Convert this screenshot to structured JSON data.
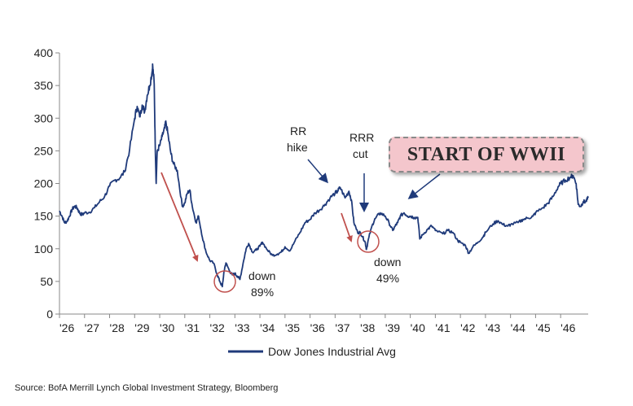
{
  "chart_data": {
    "type": "line",
    "title": "",
    "xlabel": "",
    "ylabel": "",
    "ylim": [
      0,
      400
    ],
    "xlim": [
      1926.0,
      1947.1
    ],
    "yticks": [
      0,
      50,
      100,
      150,
      200,
      250,
      300,
      350,
      400
    ],
    "xtick_labels": [
      "'26",
      "'27",
      "'28",
      "'29",
      "'30",
      "'31",
      "'32",
      "'33",
      "'34",
      "'35",
      "'36",
      "'37",
      "'38",
      "'39",
      "'40",
      "'41",
      "'42",
      "'43",
      "'44",
      "'45",
      "'46"
    ],
    "grid": false,
    "legend": {
      "position": "bottom",
      "entries": [
        "Dow Jones Industrial Avg"
      ]
    },
    "line_color": "#1f3a7a",
    "series": [
      {
        "name": "Dow Jones Industrial Avg",
        "points": [
          [
            1926.0,
            158
          ],
          [
            1926.1,
            150
          ],
          [
            1926.2,
            140
          ],
          [
            1926.3,
            142
          ],
          [
            1926.4,
            150
          ],
          [
            1926.5,
            160
          ],
          [
            1926.6,
            165
          ],
          [
            1926.7,
            163
          ],
          [
            1926.8,
            155
          ],
          [
            1926.9,
            152
          ],
          [
            1927.0,
            155
          ],
          [
            1927.2,
            156
          ],
          [
            1927.4,
            163
          ],
          [
            1927.6,
            172
          ],
          [
            1927.8,
            180
          ],
          [
            1928.0,
            196
          ],
          [
            1928.2,
            205
          ],
          [
            1928.4,
            208
          ],
          [
            1928.6,
            218
          ],
          [
            1928.8,
            252
          ],
          [
            1929.0,
            300
          ],
          [
            1929.1,
            318
          ],
          [
            1929.2,
            302
          ],
          [
            1929.3,
            320
          ],
          [
            1929.4,
            310
          ],
          [
            1929.5,
            335
          ],
          [
            1929.6,
            350
          ],
          [
            1929.7,
            372
          ],
          [
            1929.72,
            381
          ],
          [
            1929.78,
            352
          ],
          [
            1929.82,
            262
          ],
          [
            1929.86,
            200
          ],
          [
            1929.9,
            250
          ],
          [
            1930.0,
            258
          ],
          [
            1930.1,
            272
          ],
          [
            1930.2,
            285
          ],
          [
            1930.25,
            294
          ],
          [
            1930.35,
            270
          ],
          [
            1930.45,
            245
          ],
          [
            1930.55,
            230
          ],
          [
            1930.7,
            220
          ],
          [
            1930.9,
            165
          ],
          [
            1931.0,
            170
          ],
          [
            1931.1,
            185
          ],
          [
            1931.2,
            190
          ],
          [
            1931.3,
            165
          ],
          [
            1931.45,
            140
          ],
          [
            1931.55,
            150
          ],
          [
            1931.7,
            118
          ],
          [
            1931.85,
            95
          ],
          [
            1932.0,
            82
          ],
          [
            1932.15,
            78
          ],
          [
            1932.3,
            60
          ],
          [
            1932.4,
            50
          ],
          [
            1932.5,
            42
          ],
          [
            1932.55,
            60
          ],
          [
            1932.6,
            72
          ],
          [
            1932.65,
            78
          ],
          [
            1932.8,
            65
          ],
          [
            1932.9,
            60
          ],
          [
            1933.0,
            62
          ],
          [
            1933.1,
            58
          ],
          [
            1933.2,
            53
          ],
          [
            1933.35,
            82
          ],
          [
            1933.45,
            100
          ],
          [
            1933.55,
            108
          ],
          [
            1933.7,
            95
          ],
          [
            1933.85,
            98
          ],
          [
            1934.0,
            104
          ],
          [
            1934.1,
            110
          ],
          [
            1934.3,
            98
          ],
          [
            1934.5,
            90
          ],
          [
            1934.7,
            92
          ],
          [
            1934.85,
            95
          ],
          [
            1935.0,
            103
          ],
          [
            1935.2,
            97
          ],
          [
            1935.4,
            112
          ],
          [
            1935.6,
            125
          ],
          [
            1935.8,
            140
          ],
          [
            1936.0,
            145
          ],
          [
            1936.2,
            155
          ],
          [
            1936.4,
            160
          ],
          [
            1936.6,
            168
          ],
          [
            1936.8,
            178
          ],
          [
            1937.0,
            185
          ],
          [
            1937.1,
            188
          ],
          [
            1937.2,
            194
          ],
          [
            1937.4,
            178
          ],
          [
            1937.55,
            188
          ],
          [
            1937.65,
            175
          ],
          [
            1937.75,
            140
          ],
          [
            1937.9,
            125
          ],
          [
            1938.0,
            125
          ],
          [
            1938.1,
            118
          ],
          [
            1938.2,
            110
          ],
          [
            1938.25,
            99
          ],
          [
            1938.35,
            118
          ],
          [
            1938.5,
            138
          ],
          [
            1938.6,
            146
          ],
          [
            1938.8,
            155
          ],
          [
            1939.0,
            150
          ],
          [
            1939.15,
            140
          ],
          [
            1939.3,
            128
          ],
          [
            1939.4,
            135
          ],
          [
            1939.5,
            140
          ],
          [
            1939.6,
            150
          ],
          [
            1939.75,
            155
          ],
          [
            1939.9,
            150
          ],
          [
            1940.0,
            150
          ],
          [
            1940.15,
            148
          ],
          [
            1940.3,
            148
          ],
          [
            1940.38,
            115
          ],
          [
            1940.5,
            122
          ],
          [
            1940.7,
            130
          ],
          [
            1940.85,
            135
          ],
          [
            1941.0,
            128
          ],
          [
            1941.3,
            123
          ],
          [
            1941.5,
            128
          ],
          [
            1941.7,
            125
          ],
          [
            1941.9,
            112
          ],
          [
            1942.0,
            110
          ],
          [
            1942.2,
            105
          ],
          [
            1942.33,
            93
          ],
          [
            1942.5,
            103
          ],
          [
            1942.7,
            110
          ],
          [
            1942.9,
            118
          ],
          [
            1943.0,
            125
          ],
          [
            1943.3,
            138
          ],
          [
            1943.5,
            143
          ],
          [
            1943.7,
            137
          ],
          [
            1943.9,
            135
          ],
          [
            1944.0,
            137
          ],
          [
            1944.3,
            140
          ],
          [
            1944.5,
            145
          ],
          [
            1944.7,
            147
          ],
          [
            1944.9,
            150
          ],
          [
            1945.0,
            155
          ],
          [
            1945.3,
            163
          ],
          [
            1945.5,
            170
          ],
          [
            1945.7,
            180
          ],
          [
            1945.9,
            195
          ],
          [
            1946.0,
            200
          ],
          [
            1946.2,
            205
          ],
          [
            1946.4,
            210
          ],
          [
            1946.5,
            212
          ],
          [
            1946.62,
            200
          ],
          [
            1946.7,
            168
          ],
          [
            1946.8,
            165
          ],
          [
            1946.9,
            172
          ],
          [
            1947.0,
            172
          ],
          [
            1947.1,
            178
          ]
        ]
      }
    ],
    "annotations": [
      {
        "text_lines": [
          "down",
          "89%"
        ]
      },
      {
        "text_lines": [
          "down",
          "49%"
        ]
      },
      {
        "text_lines": [
          "RR",
          "hike"
        ]
      },
      {
        "text_lines": [
          "RRR",
          "cut"
        ]
      }
    ],
    "callout": "START OF WWII",
    "source": "Source: BofA Merrill Lynch Global Investment Strategy, Bloomberg"
  }
}
